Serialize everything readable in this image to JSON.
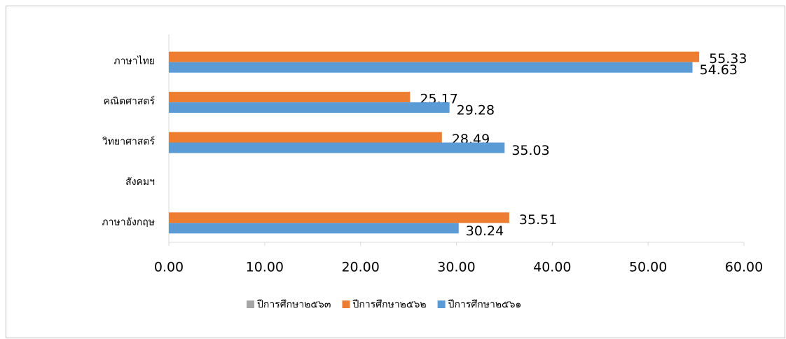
{
  "chart_data": {
    "type": "bar",
    "orientation": "horizontal",
    "categories": [
      "ภาษาไทย",
      "คณิตศาสตร์",
      "วิทยาศาสตร์",
      "สังคมฯ",
      "ภาษาอังกฤษ"
    ],
    "series": [
      {
        "name": "ปีการศึกษา๒๕๖๓",
        "color": "#a5a5a5",
        "values": [
          null,
          null,
          null,
          null,
          null
        ]
      },
      {
        "name": "ปีการศึกษา๒๕๖๒",
        "color": "#ed7d31",
        "values": [
          55.33,
          25.17,
          28.49,
          null,
          35.51
        ]
      },
      {
        "name": "ปีการศึกษา๒๕๖๑",
        "color": "#5b9bd5",
        "values": [
          54.63,
          29.28,
          35.03,
          null,
          30.24
        ]
      }
    ],
    "xlim": [
      0,
      60
    ],
    "xticks": [
      {
        "value": 0,
        "label": "0.00"
      },
      {
        "value": 10,
        "label": "10.00"
      },
      {
        "value": 20,
        "label": "20.00"
      },
      {
        "value": 30,
        "label": "30.00"
      },
      {
        "value": 40,
        "label": "40.00"
      },
      {
        "value": 50,
        "label": "50.00"
      },
      {
        "value": 60,
        "label": "60.00"
      }
    ],
    "legend": "bottom",
    "grid": false
  }
}
